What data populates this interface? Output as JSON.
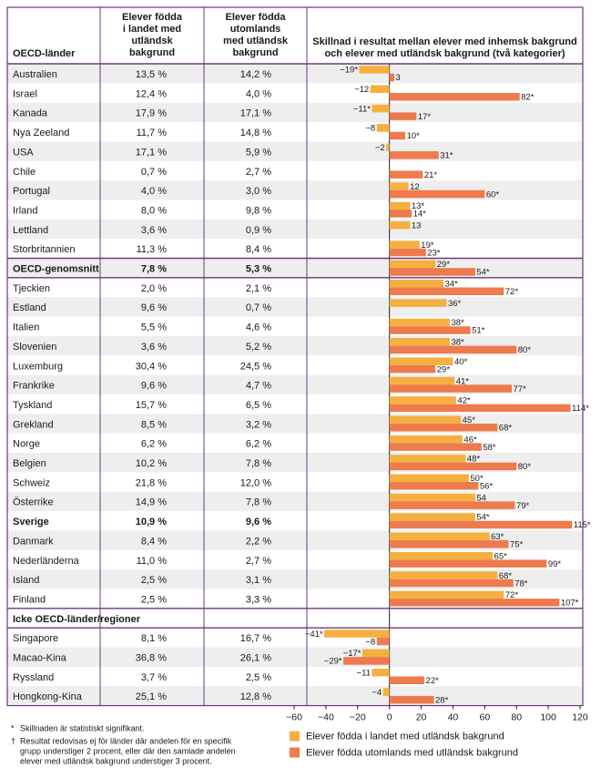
{
  "headers": {
    "country": "OECD-länder",
    "born_in_country": [
      "Elever födda",
      "i landet med",
      "utländsk",
      "bakgrund"
    ],
    "born_abroad": [
      "Elever födda",
      "utomlands",
      "med utländsk",
      "bakgrund"
    ],
    "difference": [
      "Skillnad i resultat mellan elever med inhemsk bakgrund",
      "och elever med utländsk bakgrund (två kategorier)"
    ]
  },
  "colors": {
    "series1": "#f5b041",
    "series2": "#ee7b4d",
    "border": "#6b3a7a",
    "stripe": "#eeeeee"
  },
  "chart_data": {
    "type": "bar",
    "orientation": "horizontal",
    "xlim": [
      -60,
      120
    ],
    "xticks": [
      "−60",
      "−40",
      "−20",
      "0",
      "20",
      "40",
      "60",
      "80",
      "100",
      "120"
    ],
    "xtick_values": [
      -60,
      -40,
      -20,
      0,
      20,
      40,
      60,
      80,
      100,
      120
    ],
    "legend_position": "bottom-right",
    "series": [
      {
        "name": "Elever födda i landet med utländsk bakgrund",
        "color": "#f5b041"
      },
      {
        "name": "Elever födda utomlands med utländsk bakgrund",
        "color": "#ee7b4d"
      }
    ],
    "rows": [
      {
        "country": "Australien",
        "p1": "13,5 %",
        "p2": "14,2 %",
        "v1": -19,
        "l1": "−19*",
        "v2": 3,
        "l2": "3"
      },
      {
        "country": "Israel",
        "p1": "12,4 %",
        "p2": "4,0 %",
        "v1": -12,
        "l1": "−12",
        "v2": 82,
        "l2": "82*"
      },
      {
        "country": "Kanada",
        "p1": "17,9 %",
        "p2": "17,1 %",
        "v1": -11,
        "l1": "−11*",
        "v2": 17,
        "l2": "17*"
      },
      {
        "country": "Nya Zeeland",
        "p1": "11,7 %",
        "p2": "14,8 %",
        "v1": -8,
        "l1": "−8",
        "v2": 10,
        "l2": "10*"
      },
      {
        "country": "USA",
        "p1": "17,1 %",
        "p2": "5,9 %",
        "v1": -2,
        "l1": "−2",
        "v2": 31,
        "l2": "31*"
      },
      {
        "country": "Chile",
        "p1": "0,7 %",
        "p2": "2,7 %",
        "v1": null,
        "l1": "",
        "v2": 21,
        "l2": "21*"
      },
      {
        "country": "Portugal",
        "p1": "4,0 %",
        "p2": "3,0 %",
        "v1": 12,
        "l1": "12",
        "v2": 60,
        "l2": "60*"
      },
      {
        "country": "Irland",
        "p1": "8,0 %",
        "p2": "9,8 %",
        "v1": 13,
        "l1": "13*",
        "v2": 14,
        "l2": "14*"
      },
      {
        "country": "Lettland",
        "p1": "3,6 %",
        "p2": "0,9 %",
        "v1": 13,
        "l1": "13",
        "v2": null,
        "l2": ""
      },
      {
        "country": "Storbritannien",
        "p1": "11,3 %",
        "p2": "8,4 %",
        "v1": 19,
        "l1": "19*",
        "v2": 23,
        "l2": "23*"
      },
      {
        "country": "OECD-genomsnitt",
        "p1": "7,8 %",
        "p2": "5,3 %",
        "v1": 29,
        "l1": "29*",
        "v2": 54,
        "l2": "54*",
        "bold": true
      },
      {
        "country": "Tjeckien",
        "p1": "2,0 %",
        "p2": "2,1 %",
        "v1": 34,
        "l1": "34*",
        "v2": 72,
        "l2": "72*"
      },
      {
        "country": "Estland",
        "p1": "9,6 %",
        "p2": "0,7 %",
        "v1": 36,
        "l1": "36*",
        "v2": null,
        "l2": ""
      },
      {
        "country": "Italien",
        "p1": "5,5 %",
        "p2": "4,6 %",
        "v1": 38,
        "l1": "38*",
        "v2": 51,
        "l2": "51*"
      },
      {
        "country": "Slovenien",
        "p1": "3,6 %",
        "p2": "5,2 %",
        "v1": 38,
        "l1": "38*",
        "v2": 80,
        "l2": "80*"
      },
      {
        "country": "Luxemburg",
        "p1": "30,4 %",
        "p2": "24,5 %",
        "v1": 40,
        "l1": "40*",
        "v2": 29,
        "l2": "29*"
      },
      {
        "country": "Frankrike",
        "p1": "9,6 %",
        "p2": "4,7 %",
        "v1": 41,
        "l1": "41*",
        "v2": 77,
        "l2": "77*"
      },
      {
        "country": "Tyskland",
        "p1": "15,7 %",
        "p2": "6,5 %",
        "v1": 42,
        "l1": "42*",
        "v2": 114,
        "l2": "114*"
      },
      {
        "country": "Grekland",
        "p1": "8,5 %",
        "p2": "3,2 %",
        "v1": 45,
        "l1": "45*",
        "v2": 68,
        "l2": "68*"
      },
      {
        "country": "Norge",
        "p1": "6,2 %",
        "p2": "6,2 %",
        "v1": 46,
        "l1": "46*",
        "v2": 58,
        "l2": "58*"
      },
      {
        "country": "Belgien",
        "p1": "10,2 %",
        "p2": "7,8 %",
        "v1": 48,
        "l1": "48*",
        "v2": 80,
        "l2": "80*"
      },
      {
        "country": "Schweiz",
        "p1": "21,8 %",
        "p2": "12,0 %",
        "v1": 50,
        "l1": "50*",
        "v2": 56,
        "l2": "56*"
      },
      {
        "country": "Österrike",
        "p1": "14,9 %",
        "p2": "7,8 %",
        "v1": 54,
        "l1": "54",
        "v2": 79,
        "l2": "79*"
      },
      {
        "country": "Sverige",
        "p1": "10,9 %",
        "p2": "9,6 %",
        "v1": 54,
        "l1": "54*",
        "v2": 115,
        "l2": "115*",
        "bold": true
      },
      {
        "country": "Danmark",
        "p1": "8,4 %",
        "p2": "2,2 %",
        "v1": 63,
        "l1": "63*",
        "v2": 75,
        "l2": "75*"
      },
      {
        "country": "Nederländerna",
        "p1": "11,0 %",
        "p2": "2,7 %",
        "v1": 65,
        "l1": "65*",
        "v2": 99,
        "l2": "99*"
      },
      {
        "country": "Island",
        "p1": "2,5 %",
        "p2": "3,1 %",
        "v1": 68,
        "l1": "68*",
        "v2": 78,
        "l2": "78*"
      },
      {
        "country": "Finland",
        "p1": "2,5 %",
        "p2": "3,3 %",
        "v1": 72,
        "l1": "72*",
        "v2": 107,
        "l2": "107*"
      },
      {
        "section": "Icke OECD-länder/regioner"
      },
      {
        "country": "Singapore",
        "p1": "8,1 %",
        "p2": "16,7 %",
        "v1": -41,
        "l1": "−41*",
        "v2": -8,
        "l2": "−8"
      },
      {
        "country": "Macao-Kina",
        "p1": "36,8 %",
        "p2": "26,1 %",
        "v1": -17,
        "l1": "−17*",
        "v2": -29,
        "l2": "−29*"
      },
      {
        "country": "Ryssland",
        "p1": "3,7 %",
        "p2": "2,5 %",
        "v1": -11,
        "l1": "−11",
        "v2": 22,
        "l2": "22*"
      },
      {
        "country": "Hongkong-Kina",
        "p1": "25,1 %",
        "p2": "12,8 %",
        "v1": -4,
        "l1": "−4",
        "v2": 28,
        "l2": "28*"
      }
    ]
  },
  "footnotes": [
    "Skillnaden är statistiskt signifikant.",
    "Resultat redovisas ej för länder där andelen för en specifik",
    "grupp understiger 2 procent, eller där den samlade andelen",
    "elever med utländsk bakgrund understiger 3 procent."
  ],
  "footnote_marks": [
    "*",
    "†"
  ],
  "legend": [
    "Elever födda i landet med utländsk bakgrund",
    "Elever födda utomlands med utländsk bakgrund"
  ]
}
